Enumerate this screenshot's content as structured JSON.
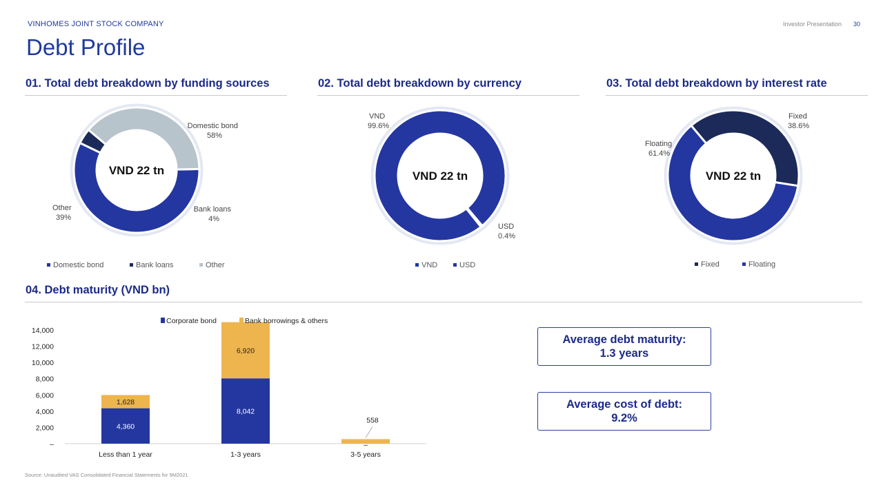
{
  "header": {
    "company": "VINHOMES JOINT STOCK COMPANY",
    "presentation": "Investor Presentation",
    "page_number": "30",
    "title": "Debt Profile"
  },
  "sections": {
    "s1": "01. Total debt breakdown by funding sources",
    "s2": "02. Total debt breakdown by currency",
    "s3": "03. Total debt breakdown by interest rate",
    "s4": "04. Debt maturity (VND bn)"
  },
  "colors": {
    "blue": "#2436a0",
    "navy": "#1b2a58",
    "grey": "#b7c4cc",
    "gold": "#eeb54f"
  },
  "stats": {
    "maturity_label": "Average debt maturity:",
    "maturity_value": "1.3 years",
    "cost_label": "Average cost of debt:",
    "cost_value": "9.2%"
  },
  "source": "Source: Unaudited VAS Consolidated Financial Statements for 9M2021",
  "chart_data": [
    {
      "type": "pie",
      "center_label": "VND 22 tn",
      "slices": [
        {
          "name": "Domestic bond",
          "value": 58,
          "pct": "58%",
          "color": "#2436a0"
        },
        {
          "name": "Bank loans",
          "value": 4,
          "pct": "4%",
          "color": "#1b2a58"
        },
        {
          "name": "Other",
          "value": 39,
          "pct": "39%",
          "color": "#b7c4cc"
        }
      ]
    },
    {
      "type": "pie",
      "center_label": "VND 22 tn",
      "slices": [
        {
          "name": "VND",
          "value": 99.6,
          "pct": "99.6%",
          "color": "#2436a0"
        },
        {
          "name": "USD",
          "value": 0.4,
          "pct": "0.4%",
          "color": "#2436a0"
        }
      ]
    },
    {
      "type": "pie",
      "center_label": "VND 22 tn",
      "slices": [
        {
          "name": "Fixed",
          "value": 38.6,
          "pct": "38.6%",
          "color": "#1b2a58"
        },
        {
          "name": "Floating",
          "value": 61.4,
          "pct": "61.4%",
          "color": "#2436a0"
        }
      ]
    },
    {
      "type": "bar",
      "stacked": true,
      "categories": [
        "Less than 1 year",
        "1-3 years",
        "3-5 years"
      ],
      "series": [
        {
          "name": "Corporate bond",
          "values": [
            4360,
            8042,
            0
          ],
          "labels": [
            "4,360",
            "8,042",
            "–"
          ],
          "color": "#2436a0"
        },
        {
          "name": "Bank borrowings & others",
          "values": [
            1628,
            6920,
            558
          ],
          "labels": [
            "1,628",
            "6,920",
            "558"
          ],
          "color": "#eeb54f"
        }
      ],
      "ylim": [
        0,
        14000
      ],
      "yticks": [
        0,
        2000,
        4000,
        6000,
        8000,
        10000,
        12000,
        14000
      ],
      "ytick_labels": [
        "–",
        "2,000",
        "4,000",
        "6,000",
        "8,000",
        "10,000",
        "12,000",
        "14,000"
      ],
      "legend": "top"
    }
  ]
}
